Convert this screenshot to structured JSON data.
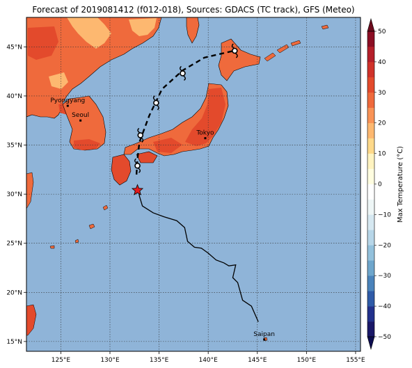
{
  "title": "Forecast of 2019081412 (f012-018), Sources: GDACS (TC track), GFS (Meteo)",
  "map": {
    "lon_range": [
      121.5,
      155.5
    ],
    "lat_range": [
      14,
      48
    ],
    "lon_ticks": [
      {
        "value": 125,
        "label": "125°E"
      },
      {
        "value": 130,
        "label": "130°E"
      },
      {
        "value": 135,
        "label": "135°E"
      },
      {
        "value": 140,
        "label": "140°E"
      },
      {
        "value": 145,
        "label": "145°E"
      },
      {
        "value": 150,
        "label": "150°E"
      },
      {
        "value": 155,
        "label": "155°E"
      }
    ],
    "lat_ticks": [
      {
        "value": 15,
        "label": "15°N"
      },
      {
        "value": 20,
        "label": "20°N"
      },
      {
        "value": 25,
        "label": "25°N"
      },
      {
        "value": 30,
        "label": "30°N"
      },
      {
        "value": 35,
        "label": "35°N"
      },
      {
        "value": 40,
        "label": "40°N"
      },
      {
        "value": 45,
        "label": "45°N"
      }
    ],
    "grid": true,
    "ocean_color": "#8fb4d8",
    "places": [
      {
        "name": "Pyongyang",
        "lon": 125.7,
        "lat": 39.0
      },
      {
        "name": "Seoul",
        "lon": 127.0,
        "lat": 37.5
      },
      {
        "name": "Tokyo",
        "lon": 139.7,
        "lat": 35.7
      },
      {
        "name": "Saipan",
        "lon": 145.7,
        "lat": 15.2
      }
    ]
  },
  "chart_data": {
    "type": "map",
    "colorbar": {
      "label": "Max Temperature (°C)",
      "min": -50,
      "max": 50,
      "step": 5,
      "ticks": [
        50,
        40,
        30,
        20,
        10,
        0,
        -10,
        -20,
        -30,
        -40,
        -50
      ],
      "extend": "both",
      "colors": [
        "#1a1868",
        "#22318c",
        "#2f5ba8",
        "#4a83bb",
        "#6ea6cc",
        "#93c1dc",
        "#b7d6e8",
        "#d6e8f1",
        "#eef6f6",
        "#ffffff",
        "#fffde0",
        "#fff3c0",
        "#fed98a",
        "#fdb870",
        "#f99356",
        "#ef6a3c",
        "#e34a2c",
        "#d0322a",
        "#b51f2a",
        "#8c0e24"
      ],
      "extend_low_color": "#0c0c50",
      "extend_high_color": "#6d0a1c"
    },
    "tc_track": {
      "past": [
        [
          132.9,
          30.6
        ],
        [
          133.0,
          29.8
        ],
        [
          133.3,
          28.8
        ],
        [
          134.4,
          28.1
        ],
        [
          135.5,
          27.7
        ],
        [
          136.8,
          27.3
        ],
        [
          137.6,
          26.6
        ],
        [
          137.9,
          25.2
        ],
        [
          138.6,
          24.6
        ],
        [
          139.3,
          24.5
        ],
        [
          140.0,
          24.0
        ],
        [
          140.8,
          23.3
        ],
        [
          141.6,
          23.0
        ],
        [
          142.1,
          22.7
        ],
        [
          142.8,
          22.8
        ],
        [
          142.5,
          21.5
        ],
        [
          143.0,
          21.0
        ],
        [
          143.5,
          19.2
        ],
        [
          144.4,
          18.6
        ],
        [
          145.1,
          17.0
        ]
      ],
      "current": [
        132.8,
        30.4
      ],
      "forecast": [
        [
          132.7,
          32.0
        ],
        [
          132.8,
          33.6
        ],
        [
          133.0,
          35.3
        ],
        [
          134.0,
          38.0
        ],
        [
          135.3,
          40.7
        ],
        [
          137.4,
          42.6
        ],
        [
          139.6,
          43.9
        ],
        [
          142.6,
          44.6
        ]
      ],
      "forecast_markers": [
        [
          132.8,
          32.9
        ],
        [
          133.1,
          36.0
        ],
        [
          134.7,
          39.3
        ],
        [
          137.4,
          42.3
        ],
        [
          142.7,
          44.6
        ]
      ]
    }
  }
}
